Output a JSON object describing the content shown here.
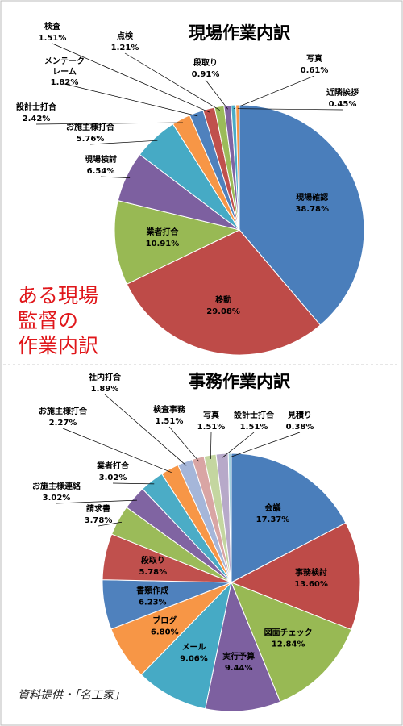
{
  "chart_data": [
    {
      "type": "pie",
      "title": "現場作業内訳",
      "categories": [
        "現場確認",
        "移動",
        "業者打合",
        "現場検討",
        "お施主様打合",
        "設計士打合",
        "メンテークレーム",
        "検査",
        "点検",
        "段取り",
        "写真",
        "近隣挨拶"
      ],
      "values": [
        38.78,
        29.08,
        10.91,
        6.54,
        5.76,
        2.42,
        1.82,
        1.51,
        1.21,
        0.91,
        0.61,
        0.45
      ],
      "value_labels": [
        "38.78%",
        "29.08%",
        "10.91%",
        "6.54%",
        "5.76%",
        "2.42%",
        "1.82%",
        "1.51%",
        "1.21%",
        "0.91%",
        "0.61%",
        "0.45%"
      ],
      "colors": [
        "#4a7ebb",
        "#be4b48",
        "#98b954",
        "#7d60a0",
        "#46aac5",
        "#f79646",
        "#4f81bd",
        "#c0504d",
        "#9bbb59",
        "#8064a2",
        "#4bacc6",
        "#f79646"
      ],
      "annotation": [
        "ある現場",
        "監督の",
        "作業内訳"
      ]
    },
    {
      "type": "pie",
      "title": "事務作業内訳",
      "categories": [
        "会議",
        "事務検討",
        "図面チェック",
        "実行予算",
        "メール",
        "ブログ",
        "書類作成",
        "段取り",
        "請求書",
        "お施主様連絡",
        "業者打合",
        "お施主様打合",
        "社内打合",
        "検査事務",
        "写真",
        "設計士打合",
        "見積り"
      ],
      "values": [
        17.37,
        13.6,
        12.84,
        9.44,
        9.06,
        6.8,
        6.23,
        5.78,
        3.78,
        3.02,
        3.02,
        2.27,
        1.89,
        1.51,
        1.51,
        1.51,
        0.38
      ],
      "value_labels": [
        "17.37%",
        "13.60%",
        "12.84%",
        "9.44%",
        "9.06%",
        "6.80%",
        "6.23%",
        "5.78%",
        "3.78%",
        "3.02%",
        "3.02%",
        "2.27%",
        "1.89%",
        "1.51%",
        "1.51%",
        "1.51%",
        "0.38%"
      ],
      "colors": [
        "#4a7ebb",
        "#be4b48",
        "#98b954",
        "#7d60a0",
        "#46aac5",
        "#f79646",
        "#4f81bd",
        "#c0504d",
        "#9bbb59",
        "#8064a2",
        "#4bacc6",
        "#f79646",
        "#a5b6d9",
        "#d9a5a4",
        "#c4d6a0",
        "#b7a9c9",
        "#a5d0dd"
      ],
      "source": "資料提供・「名工家」"
    }
  ]
}
